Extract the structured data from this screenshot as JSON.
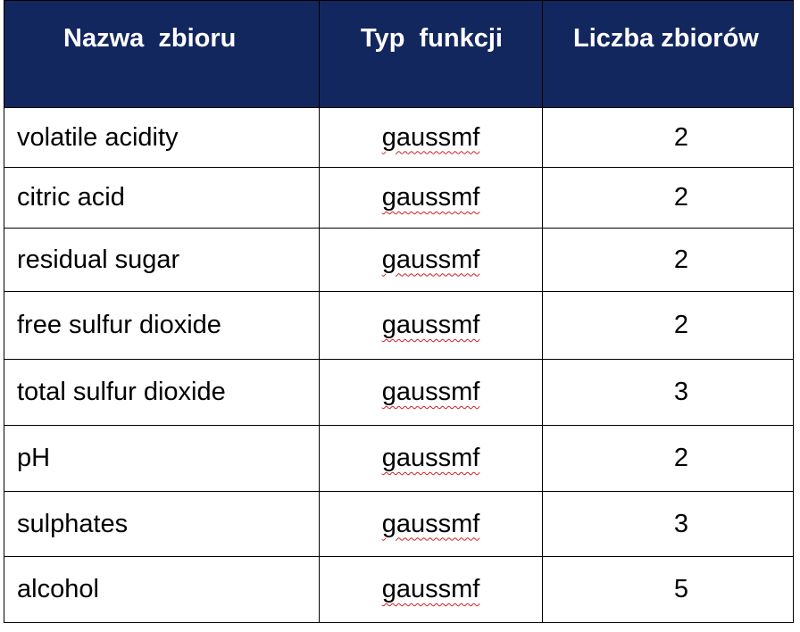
{
  "table": {
    "headers": [
      "Nazwa  zbioru",
      "Typ  funkcji",
      "Liczba zbiorów"
    ],
    "rows": [
      {
        "name": "volatile acidity",
        "type": "gaussmf",
        "count": "2"
      },
      {
        "name": "citric acid",
        "type": "gaussmf",
        "count": "2"
      },
      {
        "name": "residual sugar",
        "type": "gaussmf",
        "count": "2"
      },
      {
        "name": "free sulfur dioxide",
        "type": "gaussmf",
        "count": "2"
      },
      {
        "name": "total sulfur dioxide",
        "type": "gaussmf",
        "count": "3"
      },
      {
        "name": "pH",
        "type": "gaussmf",
        "count": "2"
      },
      {
        "name": "sulphates",
        "type": "gaussmf",
        "count": "3"
      },
      {
        "name": "alcohol",
        "type": "gaussmf",
        "count": "5"
      }
    ]
  },
  "colors": {
    "header_background": "#13275f",
    "header_text": "#ffffff",
    "spellcheck_underline": "#d21f1f"
  }
}
